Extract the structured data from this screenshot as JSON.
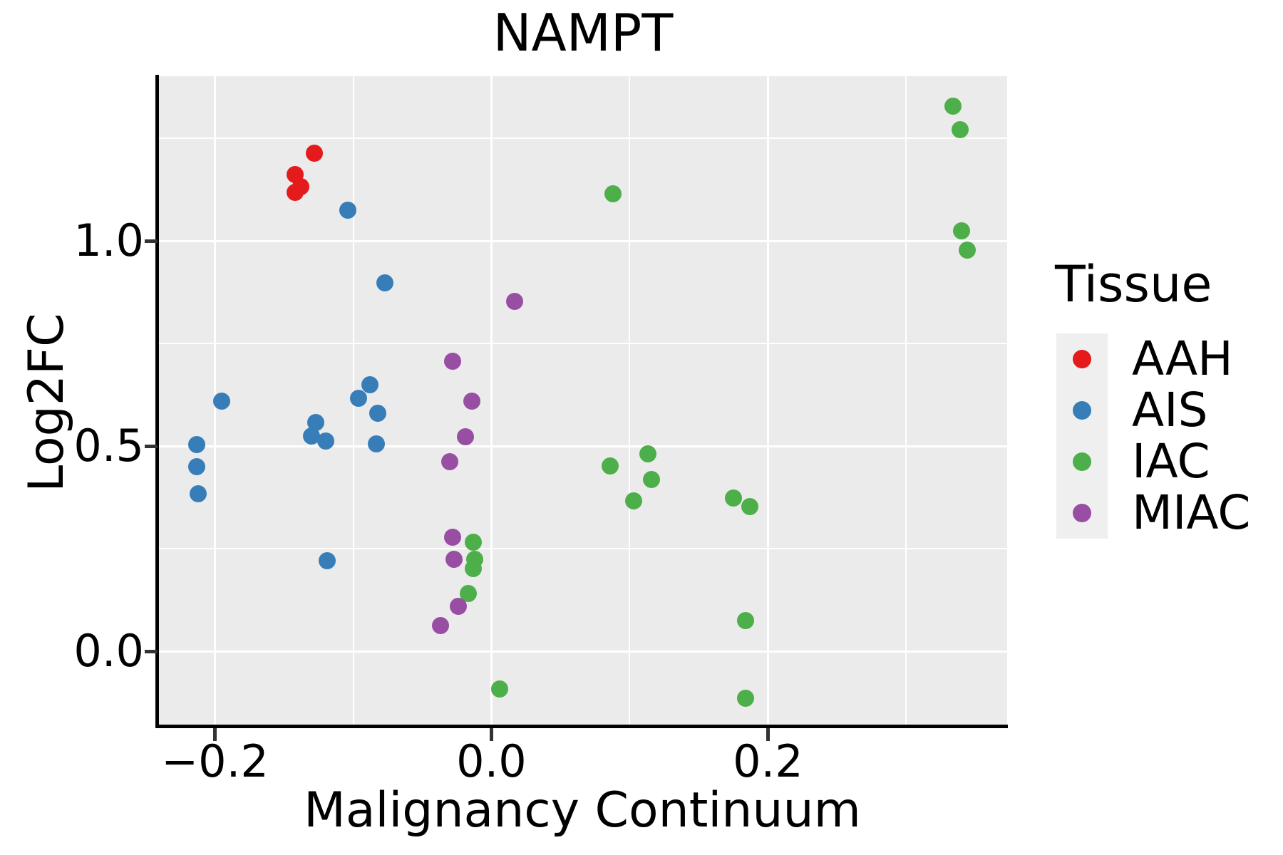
{
  "title": "NAMPT",
  "axes": {
    "x": {
      "label": "Malignancy Continuum",
      "tick_labels": [
        "−0.2",
        "0.0",
        "0.2"
      ],
      "tick_values": [
        -0.2,
        0.0,
        0.2
      ],
      "minor_ticks": [
        -0.1,
        0.1,
        0.3
      ]
    },
    "y": {
      "label": "Log2FC",
      "tick_labels": [
        "1.0",
        "0.5",
        "0.0"
      ],
      "tick_values": [
        1.0,
        0.5,
        0.0
      ],
      "minor_ticks": [
        0.25,
        0.75,
        1.25
      ]
    }
  },
  "legend": {
    "title": "Tissue",
    "items": [
      {
        "label": "AAH",
        "color": "#E41A1C"
      },
      {
        "label": "AIS",
        "color": "#377EB8"
      },
      {
        "label": "IAC",
        "color": "#4DAF4A"
      },
      {
        "label": "MIAC",
        "color": "#984EA3"
      }
    ]
  },
  "colors": {
    "panel_background": "#EBEBEB",
    "gridline": "#FFFFFF",
    "axis_text": "#000000",
    "tick_mark": "#333333",
    "legend_key_background": "#EFEFEF"
  },
  "chart_data": {
    "type": "scatter",
    "title": "NAMPT",
    "xlabel": "Malignancy Continuum",
    "ylabel": "Log2FC",
    "xlim": [
      -0.241,
      0.373
    ],
    "ylim": [
      -0.182,
      1.401
    ],
    "grid": true,
    "legend_position": "right",
    "series": [
      {
        "name": "AAH",
        "color": "#E41A1C",
        "points": [
          [
            -0.128,
            1.214
          ],
          [
            -0.142,
            1.162
          ],
          [
            -0.138,
            1.132
          ],
          [
            -0.142,
            1.118
          ]
        ]
      },
      {
        "name": "AIS",
        "color": "#377EB8",
        "points": [
          [
            -0.213,
            0.503
          ],
          [
            -0.213,
            0.45
          ],
          [
            -0.212,
            0.383
          ],
          [
            -0.195,
            0.61
          ],
          [
            -0.13,
            0.525
          ],
          [
            -0.127,
            0.557
          ],
          [
            -0.12,
            0.513
          ],
          [
            -0.096,
            0.616
          ],
          [
            -0.088,
            0.65
          ],
          [
            -0.082,
            0.58
          ],
          [
            -0.083,
            0.506
          ],
          [
            -0.104,
            1.075
          ],
          [
            -0.077,
            0.898
          ],
          [
            -0.119,
            0.221
          ]
        ]
      },
      {
        "name": "IAC",
        "color": "#4DAF4A",
        "points": [
          [
            -0.013,
            0.266
          ],
          [
            -0.012,
            0.224
          ],
          [
            -0.013,
            0.201
          ],
          [
            -0.017,
            0.14
          ],
          [
            0.088,
            1.115
          ],
          [
            0.086,
            0.451
          ],
          [
            0.113,
            0.481
          ],
          [
            0.116,
            0.418
          ],
          [
            0.103,
            0.366
          ],
          [
            0.175,
            0.373
          ],
          [
            0.187,
            0.353
          ],
          [
            0.184,
            0.075
          ],
          [
            0.184,
            -0.115
          ],
          [
            0.006,
            -0.092
          ],
          [
            0.334,
            1.328
          ],
          [
            0.339,
            1.27
          ],
          [
            0.34,
            1.024
          ],
          [
            0.344,
            0.977
          ]
        ]
      },
      {
        "name": "MIAC",
        "color": "#984EA3",
        "points": [
          [
            0.017,
            0.853
          ],
          [
            -0.028,
            0.707
          ],
          [
            -0.014,
            0.61
          ],
          [
            -0.019,
            0.523
          ],
          [
            -0.03,
            0.462
          ],
          [
            -0.028,
            0.278
          ],
          [
            -0.027,
            0.224
          ],
          [
            -0.024,
            0.109
          ],
          [
            -0.037,
            0.062
          ]
        ]
      }
    ]
  }
}
